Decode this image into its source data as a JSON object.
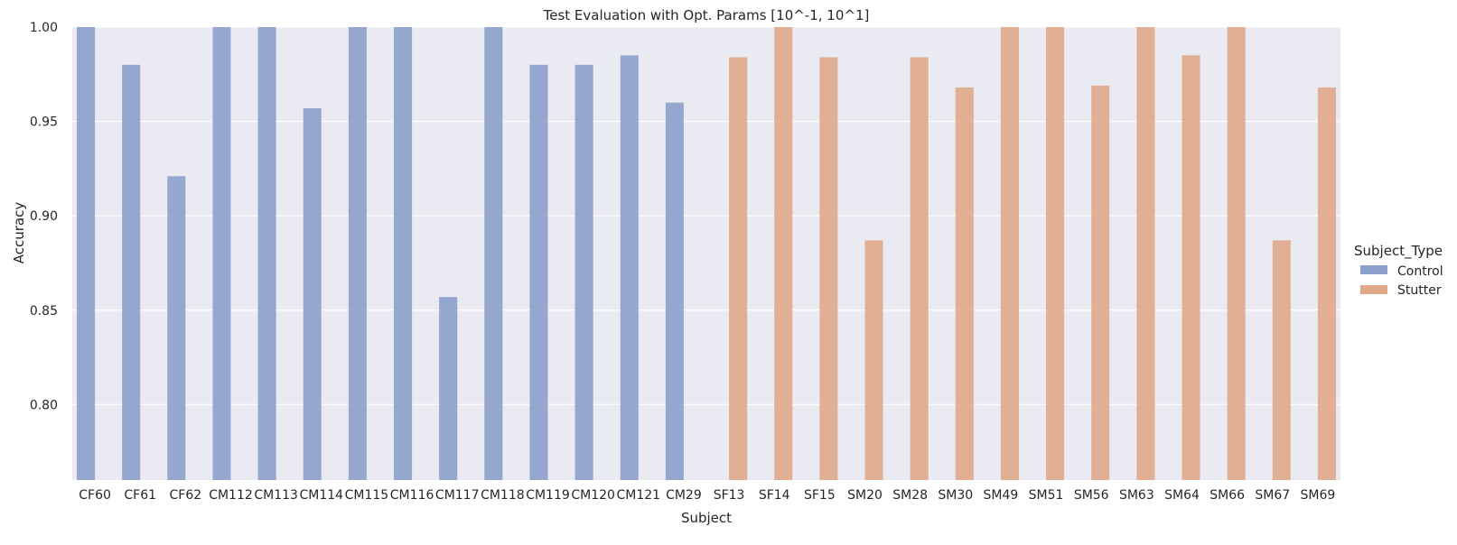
{
  "chart_data": {
    "type": "bar",
    "title": "Test Evaluation with Opt. Params [10^-1, 10^1]",
    "xlabel": "Subject",
    "ylabel": "Accuracy",
    "ylim": [
      0.76,
      1.0
    ],
    "yticks": [
      "0.80",
      "0.85",
      "0.90",
      "0.95",
      "1.00"
    ],
    "ytick_values": [
      0.8,
      0.85,
      0.9,
      0.95,
      1.0
    ],
    "grid": true,
    "legend": {
      "title": "Subject_Type",
      "placement": "right"
    },
    "categories": [
      "CF60",
      "CF61",
      "CF62",
      "CM112",
      "CM113",
      "CM114",
      "CM115",
      "CM116",
      "CM117",
      "CM118",
      "CM119",
      "CM120",
      "CM121",
      "CM29",
      "SF13",
      "SF14",
      "SF15",
      "SM20",
      "SM28",
      "SM30",
      "SM49",
      "SM51",
      "SM56",
      "SM63",
      "SM64",
      "SM66",
      "SM67",
      "SM69"
    ],
    "series": [
      {
        "name": "Control",
        "color": "#8da0cb",
        "values": [
          1.0,
          0.98,
          0.921,
          1.0,
          1.0,
          0.957,
          1.0,
          1.0,
          0.857,
          1.0,
          0.98,
          0.98,
          0.985,
          0.96,
          null,
          null,
          null,
          null,
          null,
          null,
          null,
          null,
          null,
          null,
          null,
          null,
          null,
          null
        ]
      },
      {
        "name": "Stutter",
        "color": "#e0a98a",
        "values": [
          null,
          null,
          null,
          null,
          null,
          null,
          null,
          null,
          null,
          null,
          null,
          null,
          null,
          null,
          0.984,
          1.0,
          0.984,
          0.887,
          0.984,
          0.968,
          1.0,
          1.0,
          0.969,
          1.0,
          0.985,
          1.0,
          0.887,
          0.968
        ]
      }
    ]
  }
}
